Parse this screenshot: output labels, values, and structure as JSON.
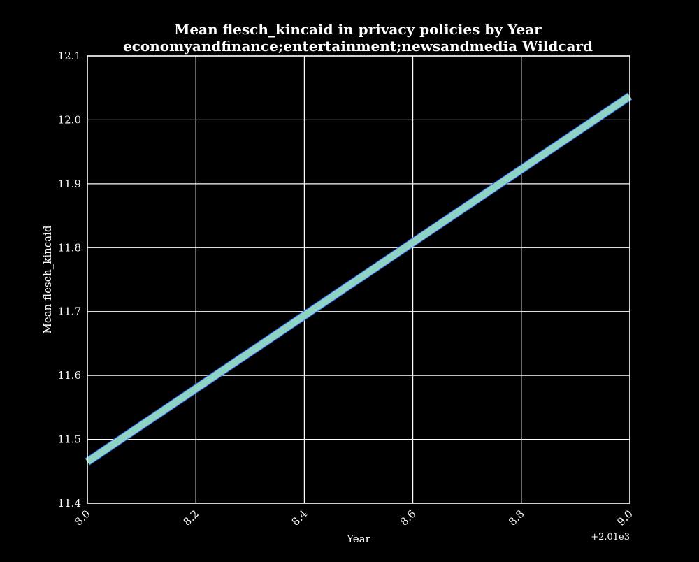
{
  "chart_data": {
    "type": "line",
    "title": "Mean flesch_kincaid in privacy policies by Year",
    "subtitle": "economyandfinance;entertainment;newsandmedia Wildcard",
    "xlabel": "Year",
    "ylabel": "Mean flesch_kincaid",
    "x_offset_label": "+2.01e3",
    "xlim": [
      8.0,
      9.0
    ],
    "ylim": [
      11.4,
      12.1
    ],
    "x_ticks": [
      "8.0",
      "8.2",
      "8.4",
      "8.6",
      "8.8",
      "9.0"
    ],
    "y_ticks": [
      "11.4",
      "11.5",
      "11.6",
      "11.7",
      "11.8",
      "11.9",
      "12.0",
      "12.1"
    ],
    "grid": true,
    "series": [
      {
        "x": [
          8.0,
          9.0
        ],
        "y": [
          11.465,
          12.037
        ],
        "color": "#8fd3c4",
        "underlay_color": "#3366ff"
      }
    ]
  },
  "colors": {
    "background": "#000000",
    "axes": "#ffffff",
    "grid": "#ffffff"
  }
}
